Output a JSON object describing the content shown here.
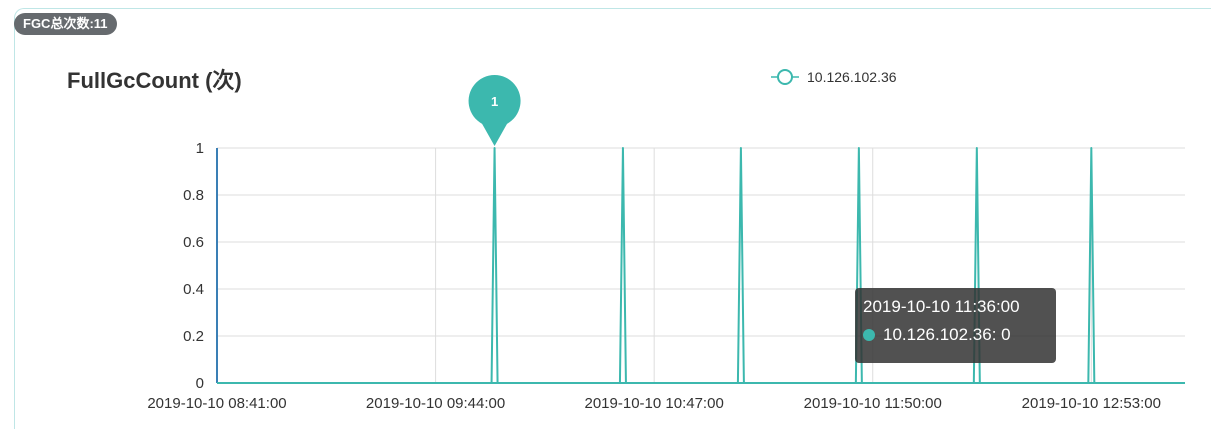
{
  "badge": {
    "label": "FGC总次数:11"
  },
  "colors": {
    "series": "#3cb8ae",
    "axis": "#3a7fb5",
    "grid": "#dddddd",
    "pin": "#3cb8ae"
  },
  "chart_data": {
    "type": "line",
    "title": "FullGcCount (次)",
    "legend": {
      "entries": [
        "10.126.102.36"
      ],
      "placement": "top-right"
    },
    "y_ticks": [
      "0",
      "0.2",
      "0.4",
      "0.6",
      "0.8",
      "1"
    ],
    "ylim": [
      0,
      1
    ],
    "x_ticks": [
      "2019-10-10 08:41:00",
      "2019-10-10 09:44:00",
      "2019-10-10 10:47:00",
      "2019-10-10 11:50:00",
      "2019-10-10 12:53:00"
    ],
    "x_tick_minutes": [
      0,
      63,
      126,
      189,
      252
    ],
    "x_range_minutes": [
      0,
      279
    ],
    "series": [
      {
        "name": "10.126.102.36",
        "spikes_at_minutes": [
          80,
          117,
          151,
          185,
          219,
          252
        ],
        "spike_value": 1,
        "baseline_value": 0
      }
    ],
    "mark_point": {
      "label": "1",
      "at_minutes": 80,
      "value": 1
    },
    "tooltip": {
      "time": "2019-10-10 11:36:00",
      "series_name": "10.126.102.36",
      "value": "0"
    }
  }
}
